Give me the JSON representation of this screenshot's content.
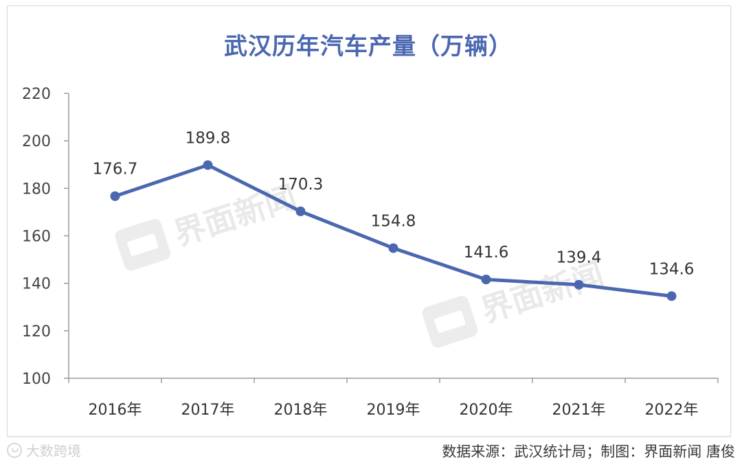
{
  "chart_data": {
    "type": "line",
    "title": "武汉历年汽车产量（万辆）",
    "categories": [
      "2016年",
      "2017年",
      "2018年",
      "2019年",
      "2020年",
      "2021年",
      "2022年"
    ],
    "series": [
      {
        "values": [
          176.7,
          189.8,
          170.3,
          154.8,
          141.6,
          139.4,
          134.6
        ],
        "labels": [
          "176.7",
          "189.8",
          "170.3",
          "154.8",
          "141.6",
          "139.4",
          "134.6"
        ]
      }
    ],
    "ylim": [
      100,
      220
    ],
    "yticks": [
      "100",
      "120",
      "140",
      "160",
      "180",
      "200",
      "220"
    ],
    "grid": false,
    "line_color": "#4a67b0"
  },
  "watermark": "界面新闻",
  "footer": {
    "source": "数据来源：武汉统计局；制图：界面新闻 唐俊",
    "brand": "大数跨境"
  }
}
